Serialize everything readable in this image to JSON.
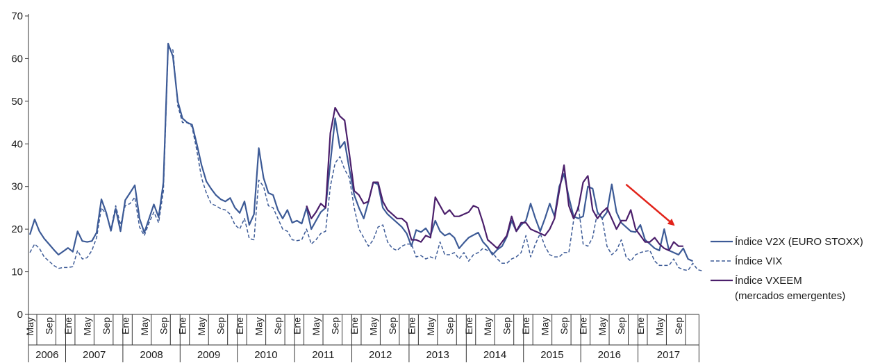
{
  "chart_data": {
    "type": "line",
    "title": "",
    "xlabel": "",
    "ylabel": "",
    "ylim": [
      0,
      70
    ],
    "yticks": [
      0,
      10,
      20,
      30,
      40,
      50,
      60,
      70
    ],
    "grid": false,
    "legend_position": "right",
    "month_labels": [
      "May",
      "Sep",
      "Ene",
      "May",
      "Sep",
      "Ene",
      "May",
      "Sep",
      "Ene",
      "May",
      "Sep",
      "Ene",
      "May",
      "Sep",
      "Ene",
      "May",
      "Sep",
      "Ene",
      "May",
      "Sep",
      "Ene",
      "May",
      "Sep",
      "Ene",
      "May",
      "Sep",
      "Ene",
      "May",
      "Sep",
      "Ene",
      "May",
      "Sep",
      "Ene",
      "May",
      "Sep"
    ],
    "years": [
      "2006",
      "2007",
      "2008",
      "2009",
      "2010",
      "2011",
      "2012",
      "2013",
      "2014",
      "2015",
      "2016",
      "2017"
    ],
    "annotation": {
      "type": "arrow",
      "color": "#e2231a",
      "from": [
        "2016-10",
        30.5
      ],
      "to": [
        "2017-08",
        21
      ]
    },
    "series": [
      {
        "name": "Índice V2X (EURO STOXX)",
        "color": "#3c5a96",
        "style": "solid",
        "start": "2006-05",
        "values": [
          18.7,
          22.3,
          19.5,
          17.8,
          16.5,
          15.2,
          14.0,
          14.8,
          15.6,
          14.7,
          19.5,
          17.2,
          17.0,
          17.2,
          19.2,
          27.0,
          23.9,
          19.6,
          24.8,
          19.5,
          26.8,
          28.5,
          30.3,
          22.5,
          19.2,
          22.5,
          25.8,
          22.8,
          31.0,
          63.5,
          60.5,
          50.0,
          46.0,
          45.0,
          44.5,
          40.0,
          35.0,
          31.2,
          29.5,
          28.0,
          27.0,
          26.5,
          27.3,
          25.0,
          23.8,
          26.5,
          21.0,
          23.5,
          39.0,
          32.0,
          28.5,
          28.0,
          24.5,
          22.5,
          24.5,
          21.5,
          22.0,
          21.3,
          25.0,
          20.0,
          22.0,
          24.0,
          25.0,
          35.5,
          46.0,
          39.0,
          40.5,
          34.0,
          28.0,
          25.0,
          22.5,
          26.5,
          31.0,
          30.5,
          25.0,
          23.5,
          22.5,
          21.5,
          20.5,
          19.0,
          16.0,
          19.8,
          19.3,
          20.2,
          18.5,
          22.0,
          19.5,
          18.5,
          19.0,
          18.0,
          15.5,
          16.8,
          18.0,
          18.6,
          19.2,
          17.0,
          15.8,
          14.0,
          15.2,
          16.0,
          18.2,
          22.0,
          19.5,
          21.0,
          22.0,
          26.0,
          22.5,
          19.5,
          22.5,
          26.0,
          23.0,
          30.0,
          33.0,
          27.5,
          23.0,
          22.5,
          23.0,
          30.0,
          29.5,
          24.0,
          22.5,
          24.0,
          30.5,
          24.0,
          21.5,
          20.5,
          19.5,
          19.3,
          21.0,
          17.5,
          16.5,
          15.5,
          15.0,
          20.0,
          15.0,
          14.5,
          14.0,
          15.5,
          13.0,
          12.5
        ]
      },
      {
        "name": "Índice VIX",
        "color": "#3c5a96",
        "style": "dashed",
        "start": "2006-05",
        "values": [
          14.5,
          16.5,
          15.5,
          13.5,
          12.5,
          11.5,
          10.8,
          11.0,
          11.0,
          11.2,
          15.0,
          13.0,
          13.3,
          15.0,
          18.0,
          25.0,
          23.5,
          20.0,
          25.5,
          21.0,
          25.5,
          26.0,
          27.5,
          20.5,
          18.5,
          21.5,
          24.0,
          21.5,
          29.0,
          62.5,
          62.0,
          49.0,
          45.0,
          45.0,
          44.0,
          38.5,
          32.0,
          28.5,
          26.0,
          25.5,
          24.8,
          24.5,
          23.5,
          21.0,
          20.0,
          22.5,
          17.8,
          17.5,
          31.5,
          30.0,
          25.5,
          25.0,
          22.5,
          20.0,
          19.5,
          17.5,
          17.3,
          17.5,
          20.0,
          16.5,
          17.5,
          19.0,
          19.5,
          30.0,
          35.5,
          37.0,
          34.0,
          32.0,
          25.0,
          20.0,
          18.0,
          16.0,
          17.5,
          20.5,
          21.0,
          17.0,
          15.5,
          15.0,
          16.0,
          16.5,
          16.5,
          13.5,
          13.8,
          13.0,
          13.5,
          13.0,
          17.0,
          14.0,
          14.0,
          14.5,
          13.0,
          14.5,
          12.5,
          14.0,
          14.5,
          15.5,
          15.0,
          14.5,
          13.0,
          12.0,
          12.0,
          13.0,
          13.5,
          14.5,
          18.5,
          13.5,
          16.5,
          19.0,
          16.0,
          14.0,
          13.5,
          13.5,
          14.5,
          14.5,
          22.0,
          25.5,
          16.5,
          16.0,
          18.0,
          24.0,
          22.5,
          16.0,
          14.0,
          15.0,
          17.5,
          13.5,
          12.5,
          14.0,
          14.5,
          14.8,
          15.0,
          12.5,
          11.5,
          11.5,
          11.5,
          13.0,
          11.0,
          10.5,
          10.3,
          12.0,
          10.5,
          10.2
        ]
      },
      {
        "name": "Índice VXEEM",
        "name_line2": "(mercados emergentes)",
        "color": "#4b1f6b",
        "style": "solid",
        "start": "2011-03",
        "values": [
          25.5,
          22.5,
          24.0,
          26.0,
          25.0,
          42.5,
          48.5,
          46.5,
          45.5,
          37.5,
          29.0,
          28.0,
          26.0,
          26.5,
          31.0,
          31.0,
          26.5,
          24.5,
          23.5,
          22.5,
          22.5,
          21.5,
          17.5,
          17.5,
          17.0,
          18.5,
          18.0,
          27.5,
          25.5,
          23.5,
          24.5,
          23.0,
          23.0,
          23.5,
          24.0,
          25.5,
          25.0,
          21.5,
          17.5,
          16.5,
          15.5,
          17.0,
          18.5,
          23.0,
          19.5,
          21.5,
          21.5,
          20.0,
          19.5,
          19.0,
          18.5,
          20.0,
          22.5,
          29.0,
          35.0,
          25.5,
          22.5,
          25.0,
          31.0,
          32.5,
          24.5,
          22.5,
          24.0,
          25.0,
          22.5,
          20.0,
          22.0,
          22.0,
          24.5,
          20.0,
          18.5,
          17.0,
          17.0,
          18.0,
          16.5,
          15.5,
          15.0,
          17.0,
          16.0,
          16.0
        ]
      }
    ]
  }
}
